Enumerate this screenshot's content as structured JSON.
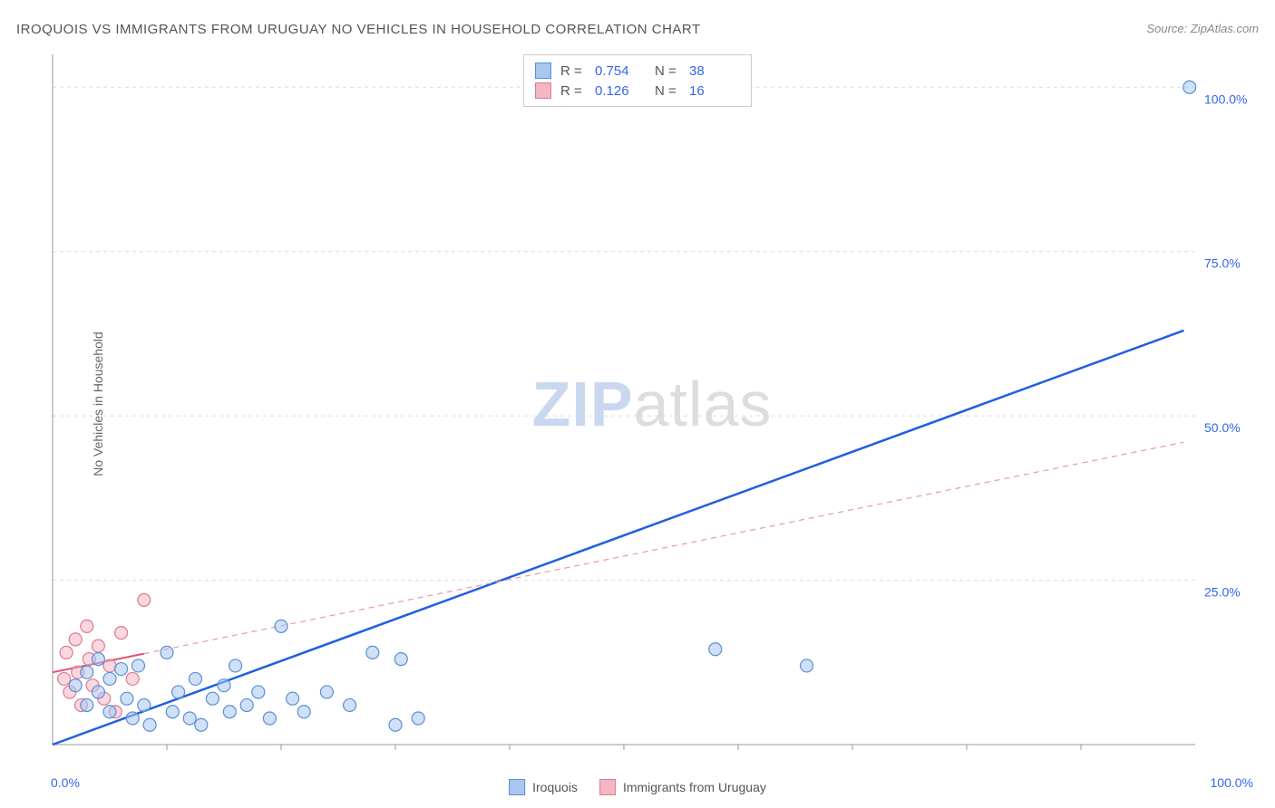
{
  "title": "IROQUOIS VS IMMIGRANTS FROM URUGUAY NO VEHICLES IN HOUSEHOLD CORRELATION CHART",
  "source": "Source: ZipAtlas.com",
  "ylabel": "No Vehicles in Household",
  "watermark": {
    "zip": "ZIP",
    "atlas": "atlas"
  },
  "chart": {
    "type": "scatter",
    "xlim": [
      0,
      100
    ],
    "ylim": [
      0,
      105
    ],
    "background_color": "#ffffff",
    "grid_color": "#dddddd",
    "grid_dash": "4,4",
    "axis_color": "#999999",
    "tick_label_color": "#3366ee",
    "tick_fontsize": 14,
    "y_ticks": [
      {
        "v": 25,
        "label": "25.0%"
      },
      {
        "v": 50,
        "label": "50.0%"
      },
      {
        "v": 75,
        "label": "75.0%"
      },
      {
        "v": 100,
        "label": "100.0%"
      }
    ],
    "x_minor_ticks": [
      10,
      20,
      30,
      40,
      50,
      60,
      70,
      80,
      90
    ],
    "x_label_0": "0.0%",
    "x_label_100": "100.0%"
  },
  "series": [
    {
      "name": "Iroquois",
      "marker_fill": "#a9c6ee",
      "marker_stroke": "#5a8fd6",
      "marker_fill_opacity": 0.55,
      "marker_radius": 7,
      "line_color": "#1f5fe0",
      "line_width": 2.5,
      "line_dash": "none",
      "R_label": "R =",
      "R": "0.754",
      "N_label": "N =",
      "N": "38",
      "regression": {
        "x1": 0,
        "y1": 0,
        "x2": 99,
        "y2": 63
      },
      "points": [
        [
          99.5,
          100
        ],
        [
          58,
          14.5
        ],
        [
          66,
          12
        ],
        [
          2,
          9
        ],
        [
          3,
          11
        ],
        [
          3,
          6
        ],
        [
          4,
          8
        ],
        [
          4,
          13
        ],
        [
          5,
          5
        ],
        [
          5,
          10
        ],
        [
          6,
          11.5
        ],
        [
          6.5,
          7
        ],
        [
          7,
          4
        ],
        [
          7.5,
          12
        ],
        [
          8,
          6
        ],
        [
          8.5,
          3
        ],
        [
          10,
          14
        ],
        [
          10.5,
          5
        ],
        [
          11,
          8
        ],
        [
          12,
          4
        ],
        [
          12.5,
          10
        ],
        [
          13,
          3
        ],
        [
          14,
          7
        ],
        [
          15,
          9
        ],
        [
          15.5,
          5
        ],
        [
          16,
          12
        ],
        [
          17,
          6
        ],
        [
          18,
          8
        ],
        [
          19,
          4
        ],
        [
          20,
          18
        ],
        [
          21,
          7
        ],
        [
          22,
          5
        ],
        [
          24,
          8
        ],
        [
          26,
          6
        ],
        [
          28,
          14
        ],
        [
          30,
          3
        ],
        [
          30.5,
          13
        ],
        [
          32,
          4
        ]
      ]
    },
    {
      "name": "Immigrants from Uruguay",
      "marker_fill": "#f4b6c2",
      "marker_stroke": "#e07a90",
      "marker_fill_opacity": 0.55,
      "marker_radius": 7,
      "line_color": "#e69aa8",
      "line_width": 1.2,
      "line_dash": "6,5",
      "R_label": "R =",
      "R": "0.126",
      "N_label": "N =",
      "N": "16",
      "regression": {
        "x1": 0,
        "y1": 11,
        "x2": 99,
        "y2": 46
      },
      "regression_solid_until_x": 8,
      "points": [
        [
          1,
          10
        ],
        [
          1.2,
          14
        ],
        [
          1.5,
          8
        ],
        [
          2,
          16
        ],
        [
          2.2,
          11
        ],
        [
          2.5,
          6
        ],
        [
          3,
          18
        ],
        [
          3.2,
          13
        ],
        [
          3.5,
          9
        ],
        [
          4,
          15
        ],
        [
          4.5,
          7
        ],
        [
          5,
          12
        ],
        [
          5.5,
          5
        ],
        [
          6,
          17
        ],
        [
          7,
          10
        ],
        [
          8,
          22
        ]
      ]
    }
  ],
  "x_legend": [
    {
      "label": "Iroquois",
      "fill": "#a9c6ee",
      "stroke": "#5a8fd6"
    },
    {
      "label": "Immigrants from Uruguay",
      "fill": "#f4b6c2",
      "stroke": "#e07a90"
    }
  ]
}
